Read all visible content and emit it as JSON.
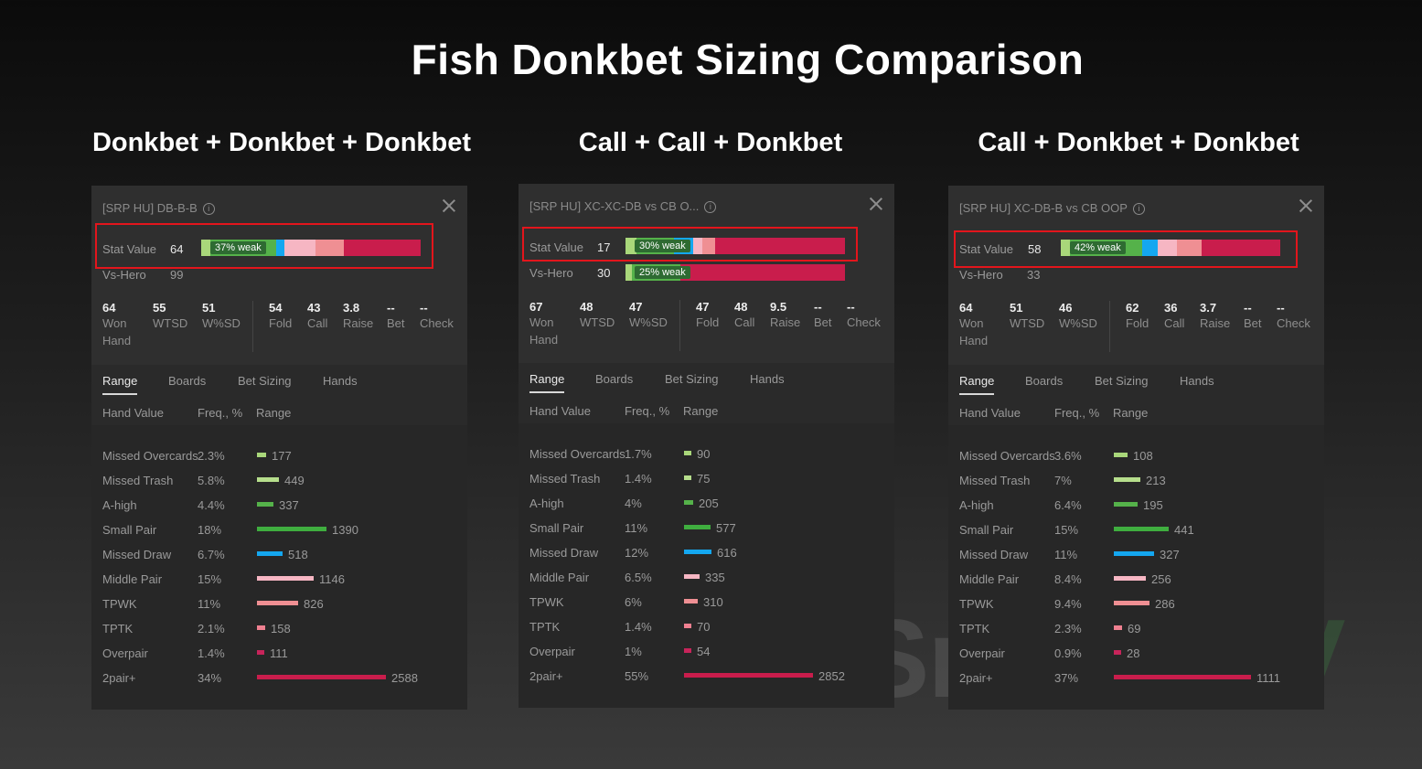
{
  "title": "Fish Donkbet Sizing Comparison",
  "colors": {
    "missed_overcards": "#a9d77a",
    "missed_trash": "#b6de8c",
    "a_high": "#55b24a",
    "small_pair": "#3fae3f",
    "missed_draw": "#14a7f0",
    "middle_pair": "#f6b6c3",
    "tpwk": "#ef8f93",
    "tptk": "#ef8090",
    "overpair": "#c7245a",
    "twopair": "#c91d4c"
  },
  "tabs": [
    "Range",
    "Boards",
    "Bet Sizing",
    "Hands"
  ],
  "table_headers": [
    "Hand Value",
    "Freq., %",
    "Range"
  ],
  "stat_labels": {
    "stat_value": "Stat Value",
    "vs_hero": "Vs-Hero",
    "won_hand_1": "Won",
    "won_hand_2": "Hand",
    "wtsd": "WTSD",
    "wsd": "W%SD",
    "fold": "Fold",
    "call": "Call",
    "raise": "Raise",
    "bet": "Bet",
    "check": "Check"
  },
  "panels": [
    {
      "section_title": "Donkbet + Donkbet + Donkbet",
      "header": "[SRP HU] DB-B-B",
      "stat_value": "64",
      "stat_pill": "37% weak",
      "vs_hero": "99",
      "vs_hero_bar": false,
      "vs_hero_pill": "",
      "stats": {
        "won": "64",
        "wtsd": "55",
        "wsd": "51",
        "fold": "54",
        "call": "43",
        "raise": "3.8",
        "bet": "--",
        "check": "--"
      },
      "rows": [
        {
          "name": "Missed Overcards",
          "freq": "2.3%",
          "count": "177"
        },
        {
          "name": "Missed Trash",
          "freq": "5.8%",
          "count": "449"
        },
        {
          "name": "A-high",
          "freq": "4.4%",
          "count": "337"
        },
        {
          "name": "Small Pair",
          "freq": "18%",
          "count": "1390"
        },
        {
          "name": "Missed Draw",
          "freq": "6.7%",
          "count": "518"
        },
        {
          "name": "Middle Pair",
          "freq": "15%",
          "count": "1146"
        },
        {
          "name": "TPWK",
          "freq": "11%",
          "count": "826"
        },
        {
          "name": "TPTK",
          "freq": "2.1%",
          "count": "158"
        },
        {
          "name": "Overpair",
          "freq": "1.4%",
          "count": "111"
        },
        {
          "name": "2pair+",
          "freq": "34%",
          "count": "2588"
        }
      ]
    },
    {
      "section_title": "Call + Call + Donkbet",
      "header": "[SRP HU] XC-XC-DB vs CB O...",
      "stat_value": "17",
      "stat_pill": "30% weak",
      "vs_hero": "30",
      "vs_hero_bar": true,
      "vs_hero_pill": "25% weak",
      "stats": {
        "won": "67",
        "wtsd": "48",
        "wsd": "47",
        "fold": "47",
        "call": "48",
        "raise": "9.5",
        "bet": "--",
        "check": "--"
      },
      "rows": [
        {
          "name": "Missed Overcards",
          "freq": "1.7%",
          "count": "90"
        },
        {
          "name": "Missed Trash",
          "freq": "1.4%",
          "count": "75"
        },
        {
          "name": "A-high",
          "freq": "4%",
          "count": "205"
        },
        {
          "name": "Small Pair",
          "freq": "11%",
          "count": "577"
        },
        {
          "name": "Missed Draw",
          "freq": "12%",
          "count": "616"
        },
        {
          "name": "Middle Pair",
          "freq": "6.5%",
          "count": "335"
        },
        {
          "name": "TPWK",
          "freq": "6%",
          "count": "310"
        },
        {
          "name": "TPTK",
          "freq": "1.4%",
          "count": "70"
        },
        {
          "name": "Overpair",
          "freq": "1%",
          "count": "54"
        },
        {
          "name": "2pair+",
          "freq": "55%",
          "count": "2852"
        }
      ]
    },
    {
      "section_title": "Call + Donkbet + Donkbet",
      "header": "[SRP HU] XC-DB-B vs CB OOP",
      "stat_value": "58",
      "stat_pill": "42% weak",
      "vs_hero": "33",
      "vs_hero_bar": false,
      "vs_hero_pill": "",
      "stats": {
        "won": "64",
        "wtsd": "51",
        "wsd": "46",
        "fold": "62",
        "call": "36",
        "raise": "3.7",
        "bet": "--",
        "check": "--"
      },
      "rows": [
        {
          "name": "Missed Overcards",
          "freq": "3.6%",
          "count": "108"
        },
        {
          "name": "Missed Trash",
          "freq": "7%",
          "count": "213"
        },
        {
          "name": "A-high",
          "freq": "6.4%",
          "count": "195"
        },
        {
          "name": "Small Pair",
          "freq": "15%",
          "count": "441"
        },
        {
          "name": "Missed Draw",
          "freq": "11%",
          "count": "327"
        },
        {
          "name": "Middle Pair",
          "freq": "8.4%",
          "count": "256"
        },
        {
          "name": "TPWK",
          "freq": "9.4%",
          "count": "286"
        },
        {
          "name": "TPTK",
          "freq": "2.3%",
          "count": "69"
        },
        {
          "name": "Overpair",
          "freq": "0.9%",
          "count": "28"
        },
        {
          "name": "2pair+",
          "freq": "37%",
          "count": "1111"
        }
      ]
    }
  ],
  "watermark": {
    "part1": "Smart",
    "part2": "EV"
  }
}
